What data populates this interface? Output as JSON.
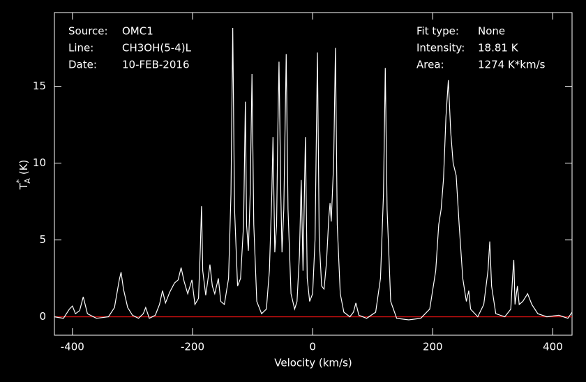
{
  "chart_data": {
    "type": "line",
    "x_label": "Velocity (km/s)",
    "y_label": {
      "main": "T",
      "sup": "*",
      "sub": "A",
      "unit": "(K)"
    },
    "info_left": [
      [
        "Source:",
        "OMC1"
      ],
      [
        "Line:",
        "CH3OH(5-4)L"
      ],
      [
        "Date:",
        "10-FEB-2016"
      ]
    ],
    "info_right": [
      [
        "Fit type:",
        "None"
      ],
      [
        "Intensity:",
        "18.81 K"
      ],
      [
        "Area:",
        "1274 K*km/s"
      ]
    ],
    "xlim": [
      -430,
      432
    ],
    "ylim": [
      -1.2,
      19.8
    ],
    "xticks": [
      -400,
      -200,
      0,
      200,
      400
    ],
    "yticks": [
      0,
      5,
      10,
      15
    ],
    "baseline": 0,
    "baseline_color": "#d01010",
    "color": "#ffffff",
    "x": [
      -430,
      -415,
      -405,
      -400,
      -395,
      -388,
      -382,
      -375,
      -360,
      -340,
      -330,
      -322,
      -319,
      -315,
      -308,
      -300,
      -290,
      -282,
      -278,
      -272,
      -262,
      -255,
      -250,
      -245,
      -238,
      -230,
      -224,
      -219,
      -214,
      -208,
      -201,
      -196,
      -190,
      -187,
      -185,
      -183,
      -178,
      -173,
      -171,
      -167,
      -163,
      -157,
      -153,
      -147,
      -140,
      -136,
      -133,
      -130,
      -125,
      -120,
      -115,
      -112,
      -110,
      -107,
      -104,
      -101,
      -98,
      -93,
      -85,
      -77,
      -72,
      -68,
      -66,
      -63,
      -60,
      -58,
      -56,
      -53,
      -51,
      -48,
      -44,
      -41,
      -36,
      -30,
      -26,
      -22,
      -19,
      -16,
      -12,
      -9,
      -5,
      0,
      4,
      8,
      11,
      15,
      19,
      23,
      27,
      29,
      31,
      35,
      38,
      41,
      46,
      52,
      62,
      68,
      72,
      77,
      90,
      105,
      113,
      118,
      121,
      124,
      130,
      140,
      160,
      180,
      195,
      205,
      210,
      214,
      218,
      222,
      226,
      230,
      234,
      239,
      244,
      250,
      256,
      260,
      263,
      275,
      285,
      292,
      295,
      298,
      305,
      320,
      330,
      333,
      335,
      337,
      341,
      344,
      350,
      358,
      365,
      375,
      390,
      410,
      425,
      432
    ],
    "values": [
      0.0,
      -0.1,
      0.5,
      0.7,
      0.2,
      0.4,
      1.3,
      0.2,
      -0.1,
      0.0,
      0.6,
      2.4,
      2.9,
      1.8,
      0.6,
      0.1,
      -0.1,
      0.2,
      0.6,
      -0.1,
      0.1,
      0.8,
      1.7,
      0.9,
      1.6,
      2.2,
      2.4,
      3.2,
      2.3,
      1.5,
      2.4,
      0.8,
      1.2,
      4.5,
      7.2,
      3.0,
      1.4,
      2.8,
      3.4,
      2.0,
      1.5,
      2.5,
      1.0,
      0.8,
      2.5,
      8,
      18.8,
      7,
      2.0,
      2.5,
      6,
      14,
      6,
      4.3,
      8,
      15.8,
      6,
      1.0,
      0.2,
      0.5,
      3,
      8,
      11.7,
      4.2,
      6,
      12,
      16.6,
      8,
      4.2,
      7,
      17.1,
      7,
      1.5,
      0.5,
      1.0,
      4,
      8.9,
      3,
      11.7,
      2.5,
      1.0,
      1.5,
      5,
      17.2,
      5,
      2,
      1.8,
      3.5,
      6.5,
      7.4,
      6.2,
      10,
      17.5,
      6,
      1.5,
      0.3,
      0.0,
      0.3,
      0.9,
      0.1,
      -0.1,
      0.3,
      2.5,
      8,
      16.2,
      7,
      1.0,
      -0.1,
      -0.2,
      -0.1,
      0.5,
      3,
      6,
      7,
      9,
      13,
      15.4,
      12,
      10,
      9.2,
      6,
      2.5,
      1.0,
      1.7,
      0.5,
      0.0,
      0.8,
      3,
      4.9,
      2,
      0.2,
      0.0,
      0.5,
      2.6,
      3.7,
      0.8,
      2.0,
      0.8,
      1.0,
      1.5,
      0.8,
      0.2,
      0.0,
      0.1,
      -0.1,
      0.3
    ]
  }
}
